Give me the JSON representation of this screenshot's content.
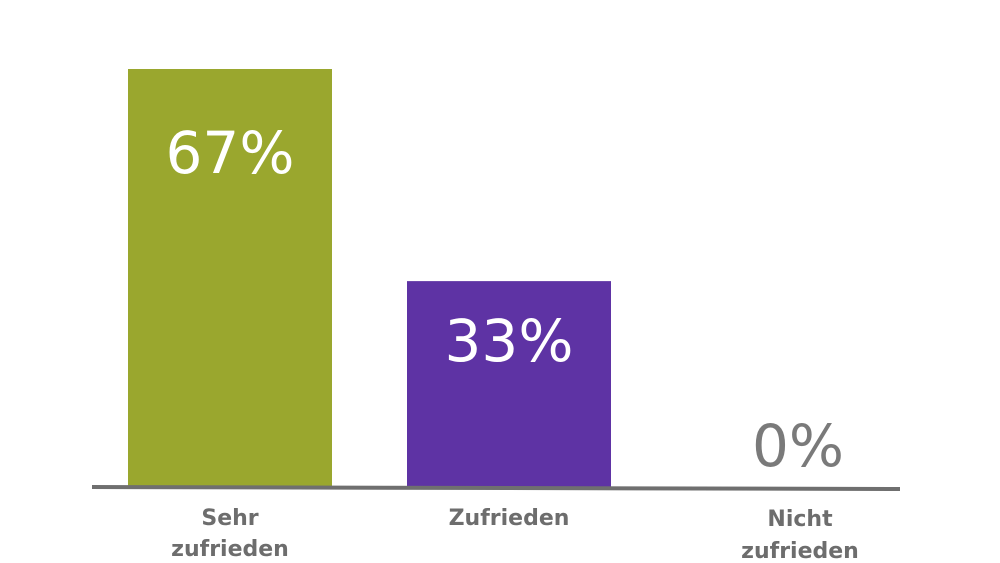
{
  "chart_data": {
    "type": "bar",
    "title": "",
    "xlabel": "",
    "ylabel": "",
    "ylim": [
      0,
      67
    ],
    "categories": [
      "Sehr zufrieden",
      "Zufrieden",
      "Nicht zufrieden"
    ],
    "category_lines": [
      [
        "Sehr",
        "zufrieden"
      ],
      [
        "Zufrieden"
      ],
      [
        "Nicht",
        "zufrieden"
      ]
    ],
    "values": [
      67,
      33,
      0
    ],
    "value_labels": [
      "67%",
      "33%",
      "0%"
    ],
    "bar_colors": [
      "#9aa72e",
      "#5e33a4",
      "#ffffff"
    ],
    "label_colors": [
      "#ffffff",
      "#ffffff",
      "#7a7a7a"
    ],
    "baseline_color": "#6f6f6f"
  }
}
